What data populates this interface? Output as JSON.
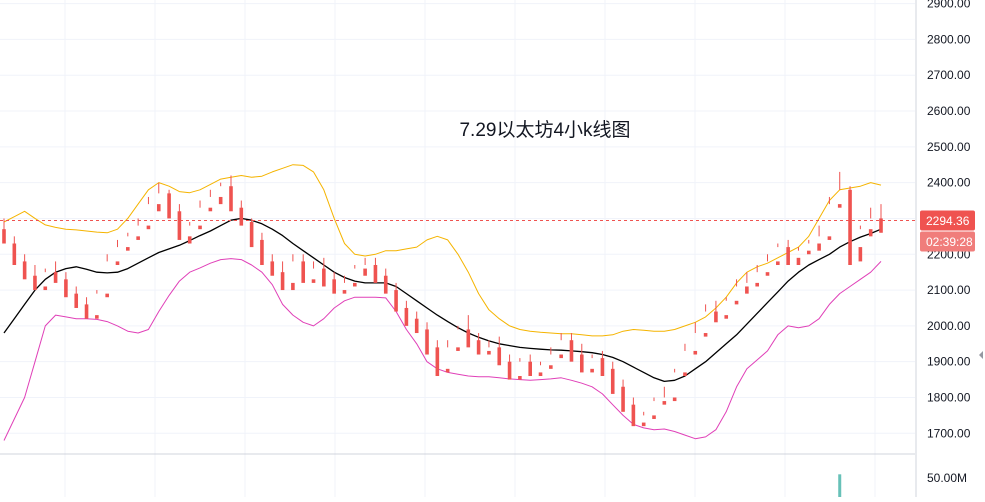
{
  "chart_data": {
    "type": "candlestick",
    "title": "7.29以太坊4小k线图",
    "ylim": [
      1645,
      2910
    ],
    "y_ticks": [
      1700,
      1800,
      1900,
      2000,
      2100,
      2200,
      2300,
      2400,
      2500,
      2600,
      2700,
      2800,
      2900
    ],
    "y_tick_labels": [
      "1700.00",
      "1800.00",
      "1900.00",
      "2000.00",
      "2100.00",
      "2200.00",
      "2300.00",
      "2400.00",
      "2500.00",
      "2600.00",
      "2700.00",
      "2800.00",
      "2900.00"
    ],
    "grid": true,
    "current_price": 2294.36,
    "current_price_label": "2294.36",
    "countdown_label": "02:39:28",
    "volume_axis_label": "50.00M",
    "colors": {
      "up": "#26a69a",
      "down": "#ef5350",
      "middle_band": "#000000",
      "upper_band": "#f5b400",
      "lower_band": "#e040b8",
      "price_line": "#ef5350"
    },
    "series": [
      {
        "type": "line",
        "role": "middle-band",
        "values": [
          1980,
          2020,
          2060,
          2100,
          2130,
          2150,
          2160,
          2165,
          2158,
          2150,
          2148,
          2150,
          2160,
          2175,
          2190,
          2205,
          2215,
          2225,
          2238,
          2252,
          2265,
          2280,
          2295,
          2300,
          2295,
          2285,
          2270,
          2252,
          2230,
          2210,
          2190,
          2170,
          2150,
          2135,
          2125,
          2120,
          2120,
          2120,
          2110,
          2090,
          2070,
          2050,
          2030,
          2012,
          1995,
          1980,
          1968,
          1958,
          1950,
          1945,
          1940,
          1937,
          1935,
          1933,
          1932,
          1930,
          1928,
          1925,
          1920,
          1912,
          1900,
          1885,
          1870,
          1855,
          1845,
          1848,
          1860,
          1880,
          1900,
          1925,
          1950,
          1975,
          2005,
          2035,
          2065,
          2095,
          2125,
          2150,
          2170,
          2185,
          2200,
          2220,
          2235,
          2248,
          2258,
          2270
        ]
      },
      {
        "type": "line",
        "role": "upper-band",
        "values": [
          2290,
          2305,
          2320,
          2300,
          2282,
          2275,
          2270,
          2268,
          2265,
          2262,
          2260,
          2270,
          2300,
          2340,
          2380,
          2400,
          2390,
          2375,
          2372,
          2380,
          2395,
          2410,
          2415,
          2420,
          2415,
          2418,
          2430,
          2440,
          2450,
          2448,
          2430,
          2380,
          2300,
          2230,
          2200,
          2195,
          2200,
          2210,
          2210,
          2215,
          2220,
          2240,
          2250,
          2240,
          2200,
          2150,
          2090,
          2045,
          2020,
          2000,
          1990,
          1985,
          1982,
          1980,
          1978,
          1978,
          1975,
          1972,
          1972,
          1975,
          1985,
          1990,
          1988,
          1985,
          1985,
          1990,
          2000,
          2010,
          2025,
          2050,
          2080,
          2120,
          2150,
          2165,
          2175,
          2190,
          2205,
          2220,
          2250,
          2300,
          2350,
          2380,
          2385,
          2390,
          2400,
          2393
        ]
      },
      {
        "type": "line",
        "role": "lower-band",
        "values": [
          1680,
          1740,
          1800,
          1900,
          2000,
          2030,
          2025,
          2020,
          2020,
          2018,
          2012,
          2000,
          1985,
          1980,
          1990,
          2040,
          2085,
          2125,
          2150,
          2162,
          2175,
          2185,
          2188,
          2185,
          2170,
          2150,
          2115,
          2060,
          2030,
          2010,
          2000,
          2020,
          2050,
          2070,
          2080,
          2080,
          2080,
          2078,
          2040,
          1990,
          1950,
          1900,
          1880,
          1870,
          1865,
          1860,
          1858,
          1858,
          1855,
          1852,
          1850,
          1848,
          1850,
          1852,
          1855,
          1848,
          1840,
          1830,
          1810,
          1780,
          1750,
          1725,
          1715,
          1710,
          1712,
          1705,
          1695,
          1685,
          1690,
          1710,
          1760,
          1830,
          1880,
          1905,
          1930,
          1975,
          2000,
          1995,
          2000,
          2020,
          2060,
          2090,
          2110,
          2130,
          2150,
          2180
        ]
      }
    ],
    "candles": [
      [
        2270,
        2300,
        2240,
        2230
      ],
      [
        2230,
        2250,
        2180,
        2170
      ],
      [
        2180,
        2200,
        2140,
        2130
      ],
      [
        2140,
        2170,
        2110,
        2100
      ],
      [
        2110,
        2160,
        2150,
        2100
      ],
      [
        2150,
        2180,
        2130,
        2120
      ],
      [
        2130,
        2150,
        2090,
        2080
      ],
      [
        2090,
        2110,
        2060,
        2050
      ],
      [
        2060,
        2080,
        2030,
        2020
      ],
      [
        2030,
        2100,
        2090,
        2020
      ],
      [
        2090,
        2200,
        2180,
        2080
      ],
      [
        2180,
        2240,
        2220,
        2170
      ],
      [
        2220,
        2260,
        2250,
        2210
      ],
      [
        2250,
        2300,
        2280,
        2240
      ],
      [
        2280,
        2360,
        2340,
        2270
      ],
      [
        2340,
        2400,
        2370,
        2320
      ],
      [
        2370,
        2380,
        2320,
        2300
      ],
      [
        2320,
        2340,
        2250,
        2240
      ],
      [
        2250,
        2290,
        2280,
        2230
      ],
      [
        2280,
        2350,
        2330,
        2270
      ],
      [
        2330,
        2380,
        2360,
        2320
      ],
      [
        2360,
        2400,
        2390,
        2340
      ],
      [
        2390,
        2420,
        2330,
        2320
      ],
      [
        2330,
        2350,
        2290,
        2280
      ],
      [
        2290,
        2300,
        2240,
        2220
      ],
      [
        2240,
        2260,
        2180,
        2170
      ],
      [
        2180,
        2200,
        2150,
        2140
      ],
      [
        2150,
        2180,
        2120,
        2100
      ],
      [
        2120,
        2200,
        2180,
        2100
      ],
      [
        2180,
        2200,
        2130,
        2120
      ],
      [
        2130,
        2180,
        2160,
        2120
      ],
      [
        2160,
        2190,
        2130,
        2110
      ],
      [
        2130,
        2150,
        2100,
        2090
      ],
      [
        2100,
        2140,
        2120,
        2090
      ],
      [
        2120,
        2170,
        2160,
        2110
      ],
      [
        2160,
        2190,
        2170,
        2140
      ],
      [
        2170,
        2190,
        2140,
        2120
      ],
      [
        2140,
        2160,
        2100,
        2090
      ],
      [
        2100,
        2120,
        2050,
        2040
      ],
      [
        2050,
        2070,
        2020,
        2000
      ],
      [
        2020,
        2040,
        1990,
        1980
      ],
      [
        1990,
        2010,
        1940,
        1920
      ],
      [
        1940,
        1960,
        1880,
        1860
      ],
      [
        1880,
        1960,
        1940,
        1870
      ],
      [
        1940,
        2000,
        1990,
        1930
      ],
      [
        1990,
        2030,
        1960,
        1940
      ],
      [
        1960,
        1980,
        1930,
        1920
      ],
      [
        1930,
        1960,
        1940,
        1920
      ],
      [
        1940,
        1970,
        1900,
        1890
      ],
      [
        1900,
        1920,
        1860,
        1850
      ],
      [
        1860,
        1910,
        1900,
        1850
      ],
      [
        1900,
        1920,
        1870,
        1860
      ],
      [
        1870,
        1900,
        1890,
        1860
      ],
      [
        1890,
        1940,
        1920,
        1880
      ],
      [
        1920,
        1980,
        1960,
        1910
      ],
      [
        1960,
        1980,
        1920,
        1900
      ],
      [
        1920,
        1950,
        1880,
        1870
      ],
      [
        1880,
        1920,
        1910,
        1870
      ],
      [
        1910,
        1930,
        1880,
        1860
      ],
      [
        1880,
        1900,
        1830,
        1810
      ],
      [
        1830,
        1850,
        1780,
        1760
      ],
      [
        1780,
        1800,
        1730,
        1720
      ],
      [
        1730,
        1760,
        1750,
        1720
      ],
      [
        1750,
        1800,
        1790,
        1740
      ],
      [
        1790,
        1830,
        1800,
        1780
      ],
      [
        1800,
        1880,
        1870,
        1790
      ],
      [
        1870,
        1950,
        1930,
        1860
      ],
      [
        1930,
        2010,
        1980,
        1920
      ],
      [
        1980,
        2060,
        2040,
        1970
      ],
      [
        2040,
        2070,
        2030,
        2010
      ],
      [
        2030,
        2080,
        2070,
        2020
      ],
      [
        2070,
        2130,
        2110,
        2060
      ],
      [
        2110,
        2150,
        2120,
        2090
      ],
      [
        2120,
        2170,
        2150,
        2110
      ],
      [
        2150,
        2200,
        2180,
        2140
      ],
      [
        2180,
        2230,
        2220,
        2170
      ],
      [
        2220,
        2240,
        2190,
        2170
      ],
      [
        2190,
        2220,
        2210,
        2170
      ],
      [
        2210,
        2240,
        2230,
        2200
      ],
      [
        2230,
        2280,
        2250,
        2210
      ],
      [
        2250,
        2360,
        2340,
        2240
      ],
      [
        2340,
        2430,
        2380,
        2330
      ],
      [
        2380,
        2390,
        2220,
        2170
      ],
      [
        2220,
        2280,
        2270,
        2180
      ],
      [
        2270,
        2330,
        2300,
        2250
      ],
      [
        2300,
        2340,
        2294,
        2260
      ]
    ],
    "volume_bars": [
      {
        "index": 81,
        "value": 60
      }
    ]
  }
}
